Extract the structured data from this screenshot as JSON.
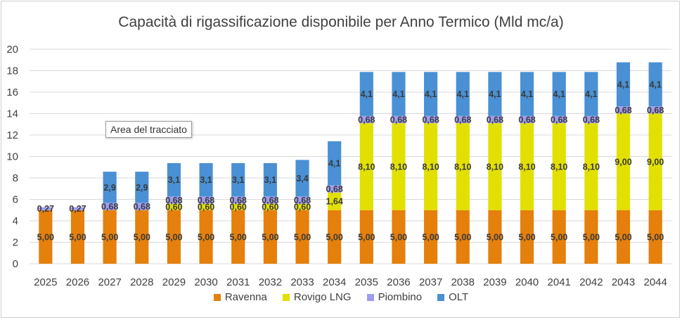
{
  "chart_data": {
    "type": "bar",
    "stacked": true,
    "title": "Capacità di rigassificazione disponibile per Anno Termico (Mld mc/a)",
    "categories": [
      "2025",
      "2026",
      "2027",
      "2028",
      "2029",
      "2030",
      "2031",
      "2032",
      "2033",
      "2034",
      "2035",
      "2036",
      "2037",
      "2038",
      "2039",
      "2040",
      "2041",
      "2042",
      "2043",
      "2044"
    ],
    "ylim": [
      0,
      20
    ],
    "yticks": [
      0,
      2,
      4,
      6,
      8,
      10,
      12,
      14,
      16,
      18,
      20
    ],
    "grid": true,
    "legend_position": "bottom",
    "series": [
      {
        "name": "Ravenna",
        "color": "#e5800c",
        "values": [
          5,
          5,
          5,
          5,
          5,
          5,
          5,
          5,
          5,
          5,
          5,
          5,
          5,
          5,
          5,
          5,
          5,
          5,
          5,
          5
        ],
        "labels": [
          "5,00",
          "5,00",
          "5,00",
          "5,00",
          "5,00",
          "5,00",
          "5,00",
          "5,00",
          "5,00",
          "5,00",
          "5,00",
          "5,00",
          "5,00",
          "5,00",
          "5,00",
          "5,00",
          "5,00",
          "5,00",
          "5,00",
          "5,00"
        ]
      },
      {
        "name": "Rovigo LNG",
        "color": "#e2e000",
        "values": [
          0,
          0,
          0,
          0,
          0.6,
          0.6,
          0.6,
          0.6,
          0.6,
          1.64,
          8.1,
          8.1,
          8.1,
          8.1,
          8.1,
          8.1,
          8.1,
          8.1,
          9.0,
          9.0
        ],
        "labels": [
          "",
          "",
          "",
          "",
          "0,60",
          "0,60",
          "0,60",
          "0,60",
          "0,60",
          "1,64",
          "8,10",
          "8,10",
          "8,10",
          "8,10",
          "8,10",
          "8,10",
          "8,10",
          "8,10",
          "9,00",
          "9,00"
        ]
      },
      {
        "name": "Piombino",
        "color": "#9f9df0",
        "values": [
          0.27,
          0.27,
          0.68,
          0.68,
          0.68,
          0.68,
          0.68,
          0.68,
          0.68,
          0.68,
          0.68,
          0.68,
          0.68,
          0.68,
          0.68,
          0.68,
          0.68,
          0.68,
          0.68,
          0.68
        ],
        "labels": [
          "0,27",
          "0,27",
          "0,68",
          "0,68",
          "0,68",
          "0,68",
          "0,68",
          "0,68",
          "0,68",
          "0,68",
          "0,68",
          "0,68",
          "0,68",
          "0,68",
          "0,68",
          "0,68",
          "0,68",
          "0,68",
          "0,68",
          "0,68"
        ]
      },
      {
        "name": "OLT",
        "color": "#4a90d4",
        "values": [
          0,
          0,
          2.9,
          2.9,
          3.1,
          3.1,
          3.1,
          3.1,
          3.4,
          4.1,
          4.1,
          4.1,
          4.1,
          4.1,
          4.1,
          4.1,
          4.1,
          4.1,
          4.1,
          4.1
        ],
        "labels": [
          "",
          "",
          "2,9",
          "2,9",
          "3,1",
          "3,1",
          "3,1",
          "3,1",
          "3,4",
          "4,1",
          "4,1",
          "4,1",
          "4,1",
          "4,1",
          "4,1",
          "4,1",
          "4,1",
          "4,1",
          "4,1",
          "4,1"
        ]
      }
    ],
    "tooltip": "Area del tracciato"
  }
}
